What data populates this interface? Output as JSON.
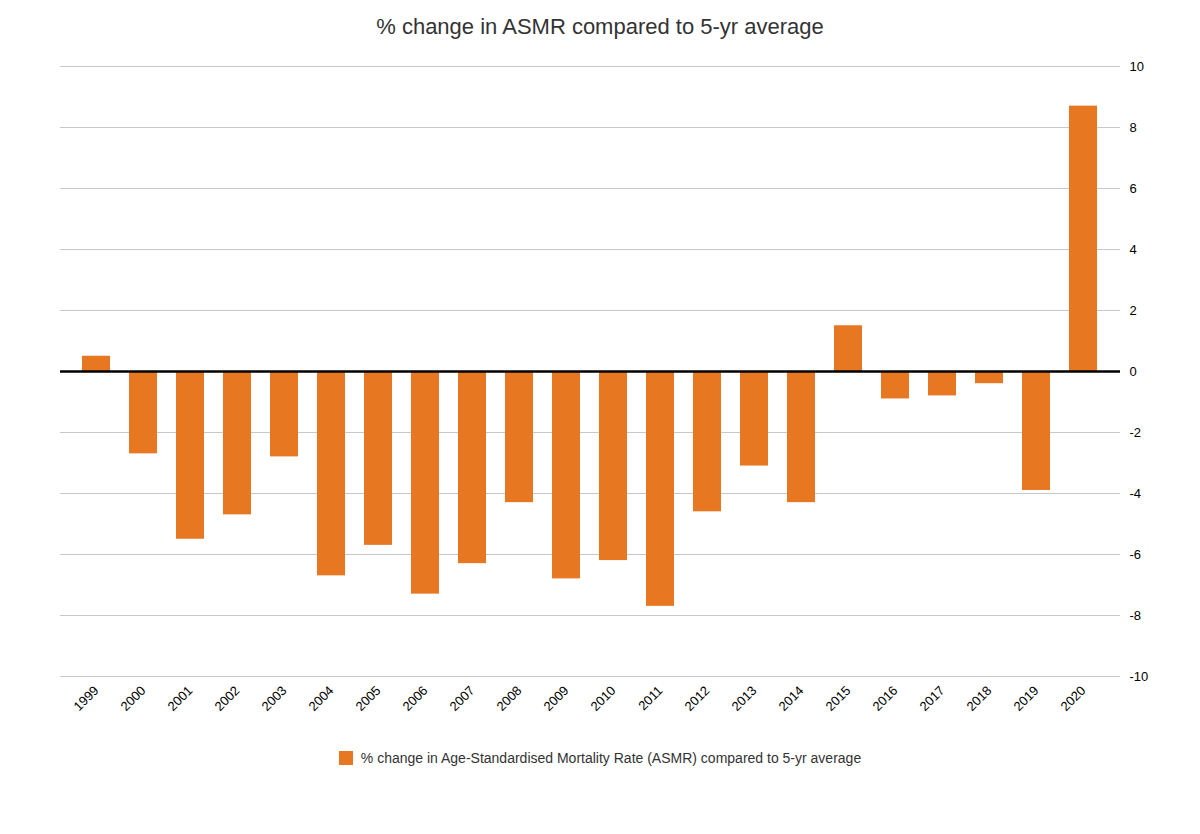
{
  "chart_data": {
    "type": "bar",
    "title": "% change in ASMR compared to 5-yr average",
    "categories": [
      "1999",
      "2000",
      "2001",
      "2002",
      "2003",
      "2004",
      "2005",
      "2006",
      "2007",
      "2008",
      "2009",
      "2010",
      "2011",
      "2012",
      "2013",
      "2014",
      "2015",
      "2016",
      "2017",
      "2018",
      "2019",
      "2020"
    ],
    "series": [
      {
        "name": "% change in Age-Standardised Mortality Rate (ASMR) compared to 5-yr average",
        "color": "#E87722",
        "values": [
          0.5,
          -2.7,
          -5.5,
          -4.7,
          -2.8,
          -6.7,
          -5.7,
          -7.3,
          -6.3,
          -4.3,
          -6.8,
          -6.2,
          -7.7,
          -4.6,
          -3.1,
          -4.3,
          1.5,
          -0.9,
          -0.8,
          -0.4,
          -3.9,
          8.7
        ]
      }
    ],
    "ylim": [
      -10,
      10
    ],
    "yticks": [
      -10,
      -8,
      -6,
      -4,
      -2,
      0,
      2,
      4,
      6,
      8,
      10
    ],
    "grid": true,
    "legend": "bottom"
  }
}
